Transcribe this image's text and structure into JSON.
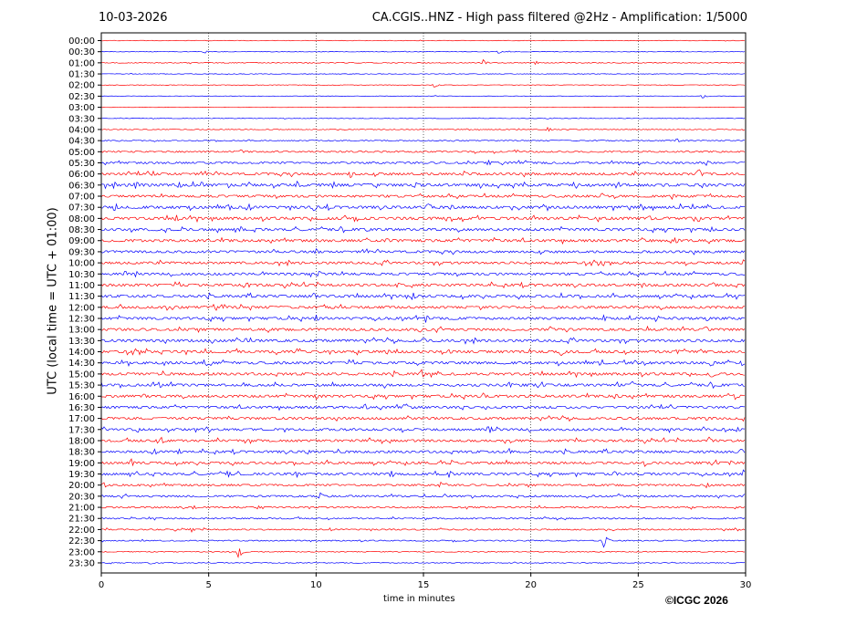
{
  "header": {
    "date": "10-03-2026",
    "title": "CA.CGIS..HNZ - High pass filtered @2Hz - Amplification: 1/5000"
  },
  "footer": {
    "copyright": "©ICGC 2026"
  },
  "colors": {
    "red_trace": "#ff0000",
    "blue_trace": "#0000ff",
    "grid": "#000000"
  },
  "chart_data": {
    "type": "line",
    "title": "CA.CGIS..HNZ - High pass filtered @2Hz - Amplification: 1/5000",
    "xlabel": "time in minutes",
    "ylabel": "UTC (local time = UTC + 01:00)",
    "xlim": [
      0,
      30
    ],
    "x_ticks": [
      0,
      5,
      10,
      15,
      20,
      25,
      30
    ],
    "vertical_grid_minutes": [
      5,
      10,
      15,
      20,
      25
    ],
    "y_tick_labels": [
      "00:00",
      "00:30",
      "01:00",
      "01:30",
      "02:00",
      "02:30",
      "03:00",
      "03:30",
      "04:00",
      "04:30",
      "05:00",
      "05:30",
      "06:00",
      "06:30",
      "07:00",
      "07:30",
      "08:00",
      "08:30",
      "09:00",
      "09:30",
      "10:00",
      "10:30",
      "11:00",
      "11:30",
      "12:00",
      "12:30",
      "13:00",
      "13:30",
      "14:00",
      "14:30",
      "15:00",
      "15:30",
      "16:00",
      "16:30",
      "17:00",
      "17:30",
      "18:00",
      "18:30",
      "19:00",
      "19:30",
      "20:00",
      "20:30",
      "21:00",
      "21:30",
      "22:00",
      "22:30",
      "23:00",
      "23:30"
    ],
    "trace_colors_alternate": [
      "red",
      "blue"
    ],
    "trace_noise_level": [
      0.3,
      0.3,
      0.4,
      0.3,
      0.3,
      0.3,
      0.2,
      0.3,
      0.4,
      0.5,
      0.8,
      1.0,
      1.2,
      1.4,
      1.2,
      1.4,
      1.4,
      1.3,
      1.3,
      1.2,
      1.2,
      1.2,
      1.3,
      1.3,
      1.3,
      1.3,
      1.3,
      1.3,
      1.3,
      1.3,
      1.3,
      1.3,
      1.3,
      1.2,
      1.2,
      1.2,
      1.2,
      1.2,
      1.2,
      1.2,
      1.0,
      1.0,
      0.8,
      0.7,
      0.7,
      0.6,
      0.5,
      0.4
    ],
    "events": [
      {
        "trace": "00:30",
        "minute": 4.8,
        "amp": 2
      },
      {
        "trace": "00:30",
        "minute": 18.5,
        "amp": 2
      },
      {
        "trace": "01:00",
        "minute": 17.8,
        "amp": 4
      },
      {
        "trace": "01:00",
        "minute": 20.2,
        "amp": 3
      },
      {
        "trace": "02:00",
        "minute": 15.5,
        "amp": 3
      },
      {
        "trace": "02:30",
        "minute": 28.0,
        "amp": 3
      },
      {
        "trace": "04:00",
        "minute": 20.8,
        "amp": 3
      },
      {
        "trace": "04:30",
        "minute": 26.8,
        "amp": 3
      },
      {
        "trace": "05:00",
        "minute": 6.5,
        "amp": 3
      },
      {
        "trace": "05:30",
        "minute": 18.0,
        "amp": 4
      },
      {
        "trace": "05:30",
        "minute": 28.2,
        "amp": 4
      },
      {
        "trace": "06:00",
        "minute": 2.4,
        "amp": 4
      },
      {
        "trace": "06:00",
        "minute": 11.6,
        "amp": 5
      },
      {
        "trace": "06:00",
        "minute": 16.9,
        "amp": 4
      },
      {
        "trace": "06:00",
        "minute": 27.8,
        "amp": 7
      },
      {
        "trace": "06:30",
        "minute": 1.6,
        "amp": 6
      },
      {
        "trace": "06:30",
        "minute": 3.6,
        "amp": 5
      },
      {
        "trace": "06:30",
        "minute": 9.1,
        "amp": 5
      },
      {
        "trace": "06:30",
        "minute": 14.6,
        "amp": 4
      },
      {
        "trace": "07:00",
        "minute": 23.3,
        "amp": 4
      },
      {
        "trace": "07:00",
        "minute": 26.6,
        "amp": 4
      },
      {
        "trace": "07:30",
        "minute": 0.6,
        "amp": 5
      },
      {
        "trace": "07:30",
        "minute": 5.9,
        "amp": 4
      },
      {
        "trace": "07:30",
        "minute": 9.9,
        "amp": 5
      },
      {
        "trace": "07:30",
        "minute": 15.2,
        "amp": 7
      },
      {
        "trace": "07:30",
        "minute": 16.3,
        "amp": 4
      },
      {
        "trace": "08:00",
        "minute": 3.5,
        "amp": 5
      },
      {
        "trace": "08:00",
        "minute": 25.5,
        "amp": 4
      },
      {
        "trace": "08:30",
        "minute": 6.5,
        "amp": 4
      },
      {
        "trace": "08:30",
        "minute": 12.4,
        "amp": 3
      },
      {
        "trace": "08:30",
        "minute": 28.4,
        "amp": 4
      },
      {
        "trace": "09:00",
        "minute": 13.3,
        "amp": 4
      },
      {
        "trace": "09:00",
        "minute": 25.2,
        "amp": 4
      },
      {
        "trace": "09:00",
        "minute": 26.8,
        "amp": 4
      },
      {
        "trace": "09:30",
        "minute": 10.0,
        "amp": 4
      },
      {
        "trace": "10:00",
        "minute": 23.3,
        "amp": 4
      },
      {
        "trace": "10:00",
        "minute": 29.9,
        "amp": 4
      },
      {
        "trace": "10:30",
        "minute": 10.1,
        "amp": 5
      },
      {
        "trace": "11:00",
        "minute": 6.8,
        "amp": 4
      },
      {
        "trace": "11:00",
        "minute": 13.8,
        "amp": 4
      },
      {
        "trace": "11:00",
        "minute": 25.2,
        "amp": 4
      },
      {
        "trace": "11:00",
        "minute": 28.5,
        "amp": 4
      },
      {
        "trace": "11:30",
        "minute": 9.9,
        "amp": 5
      },
      {
        "trace": "11:30",
        "minute": 14.5,
        "amp": 5
      },
      {
        "trace": "12:30",
        "minute": 10.0,
        "amp": 5
      },
      {
        "trace": "12:30",
        "minute": 15.1,
        "amp": 5
      },
      {
        "trace": "12:30",
        "minute": 23.4,
        "amp": 4
      },
      {
        "trace": "12:30",
        "minute": 28.2,
        "amp": 4
      },
      {
        "trace": "13:00",
        "minute": 14.8,
        "amp": 4
      },
      {
        "trace": "13:00",
        "minute": 20.9,
        "amp": 4
      },
      {
        "trace": "13:00",
        "minute": 28.1,
        "amp": 5
      },
      {
        "trace": "13:30",
        "minute": 6.7,
        "amp": 4
      },
      {
        "trace": "13:30",
        "minute": 15.0,
        "amp": 4
      },
      {
        "trace": "14:00",
        "minute": 13.3,
        "amp": 4
      },
      {
        "trace": "14:00",
        "minute": 16.2,
        "amp": 4
      },
      {
        "trace": "14:00",
        "minute": 21.4,
        "amp": 6
      },
      {
        "trace": "14:00",
        "minute": 26.8,
        "amp": 4
      },
      {
        "trace": "14:30",
        "minute": 4.9,
        "amp": 4
      },
      {
        "trace": "14:30",
        "minute": 28.4,
        "amp": 5
      },
      {
        "trace": "14:30",
        "minute": 29.8,
        "amp": 4
      },
      {
        "trace": "15:00",
        "minute": 14.9,
        "amp": 6
      },
      {
        "trace": "15:00",
        "minute": 28.4,
        "amp": 6
      },
      {
        "trace": "15:30",
        "minute": 2.7,
        "amp": 4
      },
      {
        "trace": "15:30",
        "minute": 19.0,
        "amp": 4
      },
      {
        "trace": "15:30",
        "minute": 24.7,
        "amp": 5
      },
      {
        "trace": "16:00",
        "minute": 2.0,
        "amp": 4
      },
      {
        "trace": "16:00",
        "minute": 10.0,
        "amp": 4
      },
      {
        "trace": "16:00",
        "minute": 17.8,
        "amp": 4
      },
      {
        "trace": "16:00",
        "minute": 23.9,
        "amp": 4
      },
      {
        "trace": "16:00",
        "minute": 29.5,
        "amp": 4
      },
      {
        "trace": "16:30",
        "minute": 12.3,
        "amp": 4
      },
      {
        "trace": "16:30",
        "minute": 14.2,
        "amp": 4
      },
      {
        "trace": "17:00",
        "minute": 28.2,
        "amp": 3
      },
      {
        "trace": "17:30",
        "minute": 1.7,
        "amp": 4
      },
      {
        "trace": "17:30",
        "minute": 18.1,
        "amp": 4
      },
      {
        "trace": "17:30",
        "minute": 29.6,
        "amp": 4
      },
      {
        "trace": "18:00",
        "minute": 2.8,
        "amp": 4
      },
      {
        "trace": "18:00",
        "minute": 28.3,
        "amp": 4
      },
      {
        "trace": "18:30",
        "minute": 3.6,
        "amp": 4
      },
      {
        "trace": "18:30",
        "minute": 9.6,
        "amp": 4
      },
      {
        "trace": "18:30",
        "minute": 19.0,
        "amp": 4
      },
      {
        "trace": "18:30",
        "minute": 29.8,
        "amp": 4
      },
      {
        "trace": "19:00",
        "minute": 1.4,
        "amp": 5
      },
      {
        "trace": "19:00",
        "minute": 16.3,
        "amp": 4
      },
      {
        "trace": "19:00",
        "minute": 25.3,
        "amp": 4
      },
      {
        "trace": "19:00",
        "minute": 29.3,
        "amp": 4
      },
      {
        "trace": "19:30",
        "minute": 5.9,
        "amp": 5
      },
      {
        "trace": "19:30",
        "minute": 9.1,
        "amp": 4
      },
      {
        "trace": "19:30",
        "minute": 13.5,
        "amp": 5
      },
      {
        "trace": "19:30",
        "minute": 16.2,
        "amp": 5
      },
      {
        "trace": "19:30",
        "minute": 23.9,
        "amp": 4
      },
      {
        "trace": "19:30",
        "minute": 29.9,
        "amp": 5
      },
      {
        "trace": "20:00",
        "minute": 0.1,
        "amp": 4
      },
      {
        "trace": "20:00",
        "minute": 15.8,
        "amp": 4
      },
      {
        "trace": "20:00",
        "minute": 28.2,
        "amp": 4
      },
      {
        "trace": "20:30",
        "minute": 10.2,
        "amp": 5
      },
      {
        "trace": "21:00",
        "minute": 4.3,
        "amp": 3
      },
      {
        "trace": "21:00",
        "minute": 7.3,
        "amp": 3
      },
      {
        "trace": "22:00",
        "minute": 4.2,
        "amp": 3
      },
      {
        "trace": "22:30",
        "minute": 23.4,
        "amp": 9
      },
      {
        "trace": "23:00",
        "minute": 6.4,
        "amp": 8
      },
      {
        "trace": "23:30",
        "minute": 2.3,
        "amp": 2
      }
    ]
  }
}
